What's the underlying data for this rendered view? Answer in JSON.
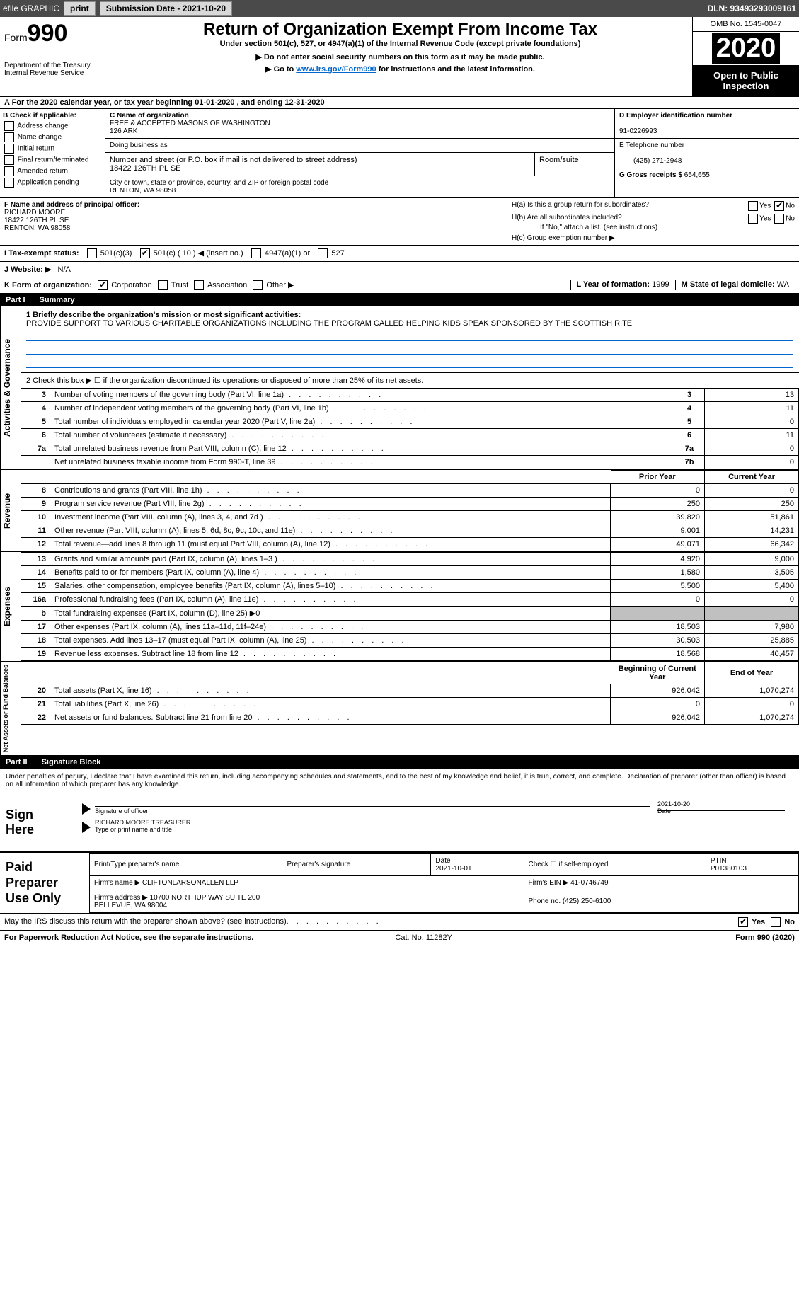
{
  "topbar": {
    "efile": "efile GRAPHIC",
    "print": "print",
    "submission": "Submission Date - 2021-10-20",
    "dln": "DLN: 93493293009161"
  },
  "header": {
    "form_prefix": "Form",
    "form_number": "990",
    "dept": "Department of the Treasury\nInternal Revenue Service",
    "title": "Return of Organization Exempt From Income Tax",
    "subtitle": "Under section 501(c), 527, or 4947(a)(1) of the Internal Revenue Code (except private foundations)",
    "note1": "▶ Do not enter social security numbers on this form as it may be made public.",
    "note2_pre": "▶ Go to ",
    "note2_link": "www.irs.gov/Form990",
    "note2_post": " for instructions and the latest information.",
    "omb": "OMB No. 1545-0047",
    "year": "2020",
    "open": "Open to Public Inspection"
  },
  "section_a": "A For the 2020 calendar year, or tax year beginning 01-01-2020    , and ending 12-31-2020",
  "box_b": {
    "label": "B Check if applicable:",
    "opts": [
      "Address change",
      "Name change",
      "Initial return",
      "Final return/terminated",
      "Amended return",
      "Application pending"
    ]
  },
  "box_c": {
    "name_label": "C Name of organization",
    "name": "FREE & ACCEPTED MASONS OF WASHINGTON\n126 ARK",
    "dba_label": "Doing business as",
    "addr_label": "Number and street (or P.O. box if mail is not delivered to street address)",
    "room_label": "Room/suite",
    "addr": "18422 126TH PL SE",
    "city_label": "City or town, state or province, country, and ZIP or foreign postal code",
    "city": "RENTON, WA  98058"
  },
  "box_d": {
    "label": "D Employer identification number",
    "value": "91-0226993"
  },
  "box_e": {
    "label": "E Telephone number",
    "value": "(425) 271-2948"
  },
  "box_g": {
    "label": "G Gross receipts $",
    "value": "654,655"
  },
  "box_f": {
    "label": "F Name and address of principal officer:",
    "name": "RICHARD MOORE",
    "addr1": "18422 126TH PL SE",
    "addr2": "RENTON, WA  98058"
  },
  "box_h": {
    "ha": "H(a)  Is this a group return for subordinates?",
    "hb": "H(b)  Are all subordinates included?",
    "hb_note": "If \"No,\" attach a list. (see instructions)",
    "hc": "H(c)  Group exemption number ▶"
  },
  "row_i": {
    "label": "I   Tax-exempt status:",
    "c3": "501(c)(3)",
    "c": "501(c) ( 10 ) ◀ (insert no.)",
    "a1": "4947(a)(1) or",
    "s527": "527"
  },
  "row_j": {
    "label": "J   Website: ▶",
    "value": "N/A"
  },
  "row_k": {
    "label": "K Form of organization:",
    "corp": "Corporation",
    "trust": "Trust",
    "assoc": "Association",
    "other": "Other ▶"
  },
  "row_l": {
    "label": "L Year of formation:",
    "value": "1999"
  },
  "row_m": {
    "label": "M State of legal domicile:",
    "value": "WA"
  },
  "part1": {
    "header_num": "Part I",
    "header_title": "Summary",
    "line1_label": "1 Briefly describe the organization's mission or most significant activities:",
    "line1_text": "PROVIDE SUPPORT TO VARIOUS CHARITABLE ORGANIZATIONS INCLUDING THE PROGRAM CALLED HELPING KIDS SPEAK SPONSORED BY THE SCOTTISH RITE",
    "line2": "2   Check this box ▶ ☐  if the organization discontinued its operations or disposed of more than 25% of its net assets.",
    "tabs": {
      "gov": "Activities & Governance",
      "rev": "Revenue",
      "exp": "Expenses",
      "net": "Net Assets or Fund Balances"
    },
    "prior_label": "Prior Year",
    "current_label": "Current Year",
    "begin_label": "Beginning of Current Year",
    "end_label": "End of Year",
    "rows_gov": [
      {
        "n": "3",
        "d": "Number of voting members of the governing body (Part VI, line 1a)",
        "box": "3",
        "v": "13"
      },
      {
        "n": "4",
        "d": "Number of independent voting members of the governing body (Part VI, line 1b)",
        "box": "4",
        "v": "11"
      },
      {
        "n": "5",
        "d": "Total number of individuals employed in calendar year 2020 (Part V, line 2a)",
        "box": "5",
        "v": "0"
      },
      {
        "n": "6",
        "d": "Total number of volunteers (estimate if necessary)",
        "box": "6",
        "v": "11"
      },
      {
        "n": "7a",
        "d": "Total unrelated business revenue from Part VIII, column (C), line 12",
        "box": "7a",
        "v": "0"
      },
      {
        "n": "",
        "d": "Net unrelated business taxable income from Form 990-T, line 39",
        "box": "7b",
        "v": "0"
      }
    ],
    "rows_rev": [
      {
        "n": "8",
        "d": "Contributions and grants (Part VIII, line 1h)",
        "p": "0",
        "c": "0"
      },
      {
        "n": "9",
        "d": "Program service revenue (Part VIII, line 2g)",
        "p": "250",
        "c": "250"
      },
      {
        "n": "10",
        "d": "Investment income (Part VIII, column (A), lines 3, 4, and 7d )",
        "p": "39,820",
        "c": "51,861"
      },
      {
        "n": "11",
        "d": "Other revenue (Part VIII, column (A), lines 5, 6d, 8c, 9c, 10c, and 11e)",
        "p": "9,001",
        "c": "14,231"
      },
      {
        "n": "12",
        "d": "Total revenue—add lines 8 through 11 (must equal Part VIII, column (A), line 12)",
        "p": "49,071",
        "c": "66,342"
      }
    ],
    "rows_exp": [
      {
        "n": "13",
        "d": "Grants and similar amounts paid (Part IX, column (A), lines 1–3 )",
        "p": "4,920",
        "c": "9,000"
      },
      {
        "n": "14",
        "d": "Benefits paid to or for members (Part IX, column (A), line 4)",
        "p": "1,580",
        "c": "3,505"
      },
      {
        "n": "15",
        "d": "Salaries, other compensation, employee benefits (Part IX, column (A), lines 5–10)",
        "p": "5,500",
        "c": "5,400"
      },
      {
        "n": "16a",
        "d": "Professional fundraising fees (Part IX, column (A), line 11e)",
        "p": "0",
        "c": "0"
      },
      {
        "n": "b",
        "d": "Total fundraising expenses (Part IX, column (D), line 25) ▶0",
        "p": "",
        "c": "",
        "shaded": true
      },
      {
        "n": "17",
        "d": "Other expenses (Part IX, column (A), lines 11a–11d, 11f–24e)",
        "p": "18,503",
        "c": "7,980"
      },
      {
        "n": "18",
        "d": "Total expenses. Add lines 13–17 (must equal Part IX, column (A), line 25)",
        "p": "30,503",
        "c": "25,885"
      },
      {
        "n": "19",
        "d": "Revenue less expenses. Subtract line 18 from line 12",
        "p": "18,568",
        "c": "40,457"
      }
    ],
    "rows_net": [
      {
        "n": "20",
        "d": "Total assets (Part X, line 16)",
        "p": "926,042",
        "c": "1,070,274"
      },
      {
        "n": "21",
        "d": "Total liabilities (Part X, line 26)",
        "p": "0",
        "c": "0"
      },
      {
        "n": "22",
        "d": "Net assets or fund balances. Subtract line 21 from line 20",
        "p": "926,042",
        "c": "1,070,274"
      }
    ]
  },
  "part2": {
    "header_num": "Part II",
    "header_title": "Signature Block",
    "text": "Under penalties of perjury, I declare that I have examined this return, including accompanying schedules and statements, and to the best of my knowledge and belief, it is true, correct, and complete. Declaration of preparer (other than officer) is based on all information of which preparer has any knowledge.",
    "sign_here": "Sign Here",
    "sig_officer": "Signature of officer",
    "sig_date": "Date",
    "sig_date_val": "2021-10-20",
    "officer_name": "RICHARD MOORE  TREASURER",
    "type_name": "Type or print name and title",
    "paid": "Paid Preparer Use Only",
    "prep_name_label": "Print/Type preparer's name",
    "prep_sig_label": "Preparer's signature",
    "prep_date_label": "Date",
    "prep_date": "2021-10-01",
    "self_emp": "Check ☐ if self-employed",
    "ptin_label": "PTIN",
    "ptin": "P01380103",
    "firm_name_label": "Firm's name    ▶",
    "firm_name": "CLIFTONLARSONALLEN LLP",
    "firm_ein_label": "Firm's EIN ▶",
    "firm_ein": "41-0746749",
    "firm_addr_label": "Firm's address ▶",
    "firm_addr": "10700 NORTHUP WAY SUITE 200\nBELLEVUE, WA  98004",
    "phone_label": "Phone no.",
    "phone": "(425) 250-6100",
    "discuss": "May the IRS discuss this return with the preparer shown above? (see instructions)",
    "yes": "Yes",
    "no": "No"
  },
  "footer": {
    "pra": "For Paperwork Reduction Act Notice, see the separate instructions.",
    "cat": "Cat. No. 11282Y",
    "form": "Form 990 (2020)"
  }
}
